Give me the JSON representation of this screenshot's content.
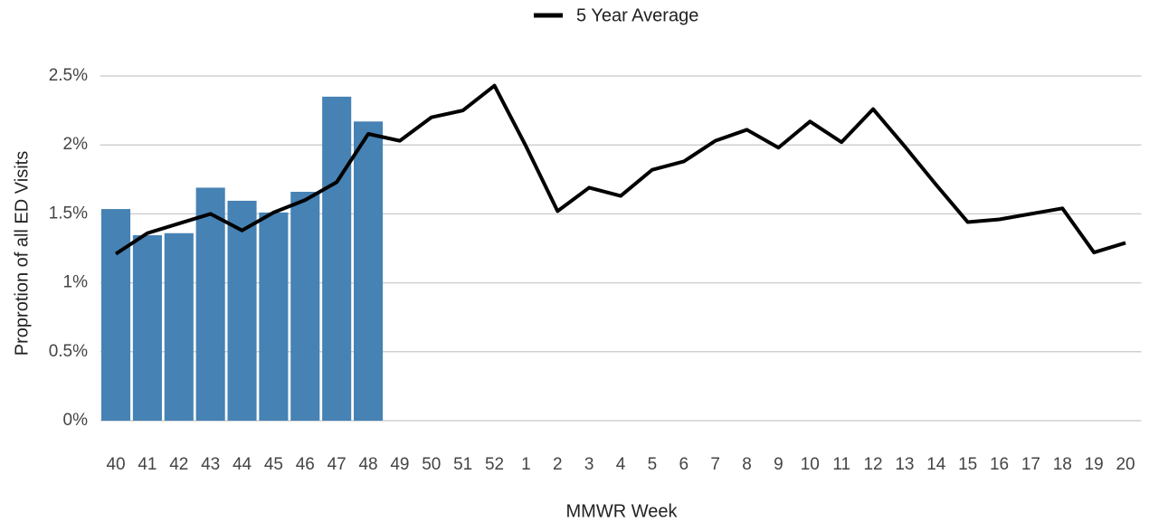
{
  "chart_data": {
    "type": "combo",
    "x_label": "MMWR Week",
    "y_label": "Proprotion of all ED Visits",
    "categories": [
      "40",
      "41",
      "42",
      "43",
      "44",
      "45",
      "46",
      "47",
      "48",
      "49",
      "50",
      "51",
      "52",
      "1",
      "2",
      "3",
      "4",
      "5",
      "6",
      "7",
      "8",
      "9",
      "10",
      "11",
      "12",
      "13",
      "14",
      "15",
      "16",
      "17",
      "18",
      "19",
      "20"
    ],
    "series": [
      {
        "type": "bar",
        "color": "#4682b4",
        "values": [
          1.535,
          1.345,
          1.36,
          1.69,
          1.595,
          1.51,
          1.66,
          2.35,
          2.17,
          null,
          null,
          null,
          null,
          null,
          null,
          null,
          null,
          null,
          null,
          null,
          null,
          null,
          null,
          null,
          null,
          null,
          null,
          null,
          null,
          null,
          null,
          null,
          null
        ]
      },
      {
        "type": "line",
        "name": "5 Year Average",
        "color": "#000000",
        "values": [
          1.21,
          1.36,
          1.43,
          1.5,
          1.38,
          1.51,
          1.6,
          1.73,
          2.08,
          2.03,
          2.2,
          2.25,
          2.43,
          1.99,
          1.52,
          1.69,
          1.63,
          1.82,
          1.88,
          2.03,
          2.11,
          1.98,
          2.17,
          2.02,
          2.26,
          1.99,
          1.71,
          1.44,
          1.46,
          1.5,
          1.54,
          1.22,
          1.29
        ]
      }
    ],
    "ylim": [
      0,
      2.5
    ],
    "yticks": [
      {
        "value": 0,
        "label": "0%"
      },
      {
        "value": 0.5,
        "label": "0.5%"
      },
      {
        "value": 1,
        "label": "1%"
      },
      {
        "value": 1.5,
        "label": "1.5%"
      },
      {
        "value": 2,
        "label": "2%"
      },
      {
        "value": 2.5,
        "label": "2.5%"
      }
    ],
    "grid": true,
    "legend": "top"
  }
}
